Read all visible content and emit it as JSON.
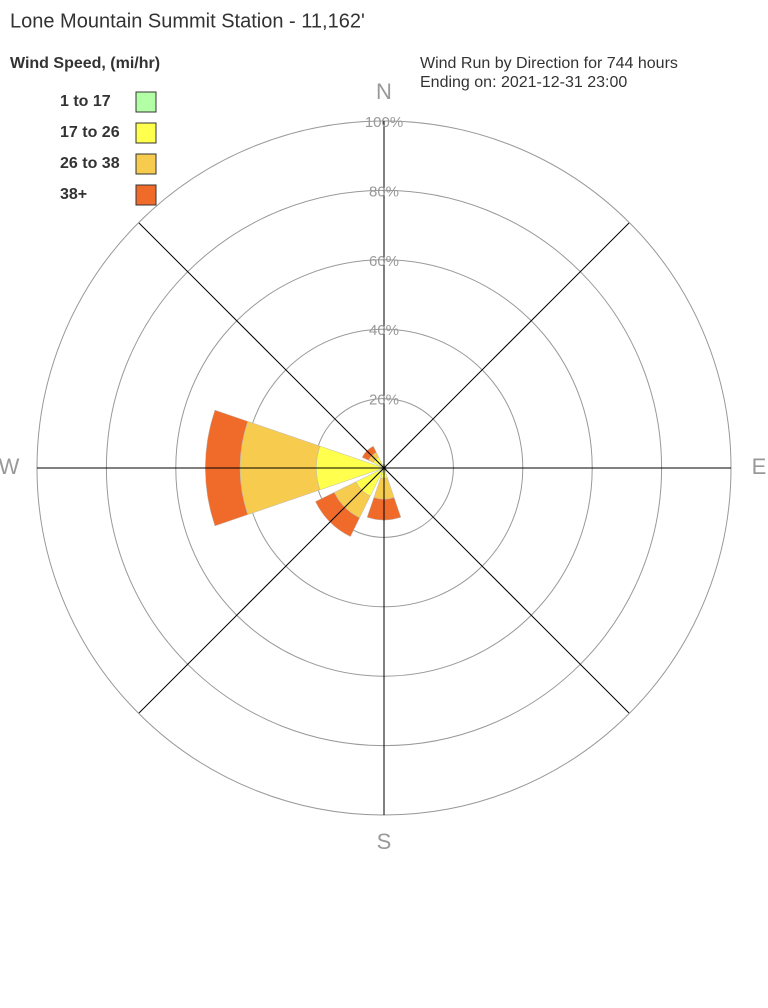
{
  "chart_data": {
    "type": "windrose",
    "title": "Lone Mountain Summit Station - 11,162'",
    "legend_title": "Wind Speed, (mi/hr)",
    "subtitle": [
      "Wind Run by Direction for 744 hours",
      "Ending on: 2021-12-31 23:00"
    ],
    "categories": [
      "N",
      null,
      "E",
      null,
      "S",
      null,
      "W",
      null
    ],
    "series": [
      {
        "name": "1 to 17",
        "color": "#b3ffa6",
        "values": [
          0,
          0,
          0,
          0,
          0,
          0,
          0.5,
          0
        ]
      },
      {
        "name": "17 to 26",
        "color": "#ffff4d",
        "values": [
          1,
          0.5,
          0.5,
          1,
          3,
          9,
          19,
          3.5
        ]
      },
      {
        "name": "26 to 38",
        "color": "#f7cb4d",
        "values": [
          0,
          0,
          0,
          0,
          6,
          7,
          22,
          1.5
        ]
      },
      {
        "name": "38+",
        "color": "#f06a2a",
        "values": [
          0,
          0,
          0,
          0,
          6,
          6,
          10,
          2
        ]
      }
    ],
    "rlim": [
      0,
      100
    ],
    "rticks": [
      {
        "value": 20,
        "label": "20%"
      },
      {
        "value": 40,
        "label": "40%"
      },
      {
        "value": 60,
        "label": "60%"
      },
      {
        "value": 80,
        "label": "80%"
      },
      {
        "value": 100,
        "label": "100%"
      }
    ]
  }
}
